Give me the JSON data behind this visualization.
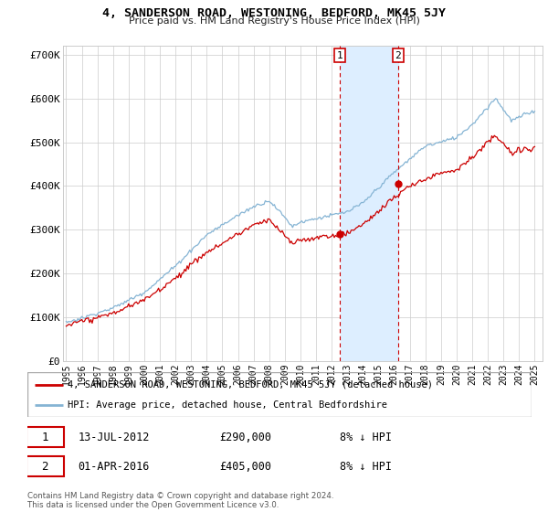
{
  "title": "4, SANDERSON ROAD, WESTONING, BEDFORD, MK45 5JY",
  "subtitle": "Price paid vs. HM Land Registry's House Price Index (HPI)",
  "ylim": [
    0,
    720000
  ],
  "yticks": [
    0,
    100000,
    200000,
    300000,
    400000,
    500000,
    600000,
    700000
  ],
  "ytick_labels": [
    "£0",
    "£100K",
    "£200K",
    "£300K",
    "£400K",
    "£500K",
    "£600K",
    "£700K"
  ],
  "legend_entry1": "4, SANDERSON ROAD, WESTONING, BEDFORD, MK45 5JY (detached house)",
  "legend_entry2": "HPI: Average price, detached house, Central Bedfordshire",
  "transaction1_date": 2012.53,
  "transaction1_price": 290000,
  "transaction2_date": 2016.25,
  "transaction2_price": 405000,
  "footer": "Contains HM Land Registry data © Crown copyright and database right 2024.\nThis data is licensed under the Open Government Licence v3.0.",
  "red_color": "#cc0000",
  "blue_color": "#85b4d4",
  "blue_fill_color": "#ddeeff",
  "grid_color": "#cccccc"
}
